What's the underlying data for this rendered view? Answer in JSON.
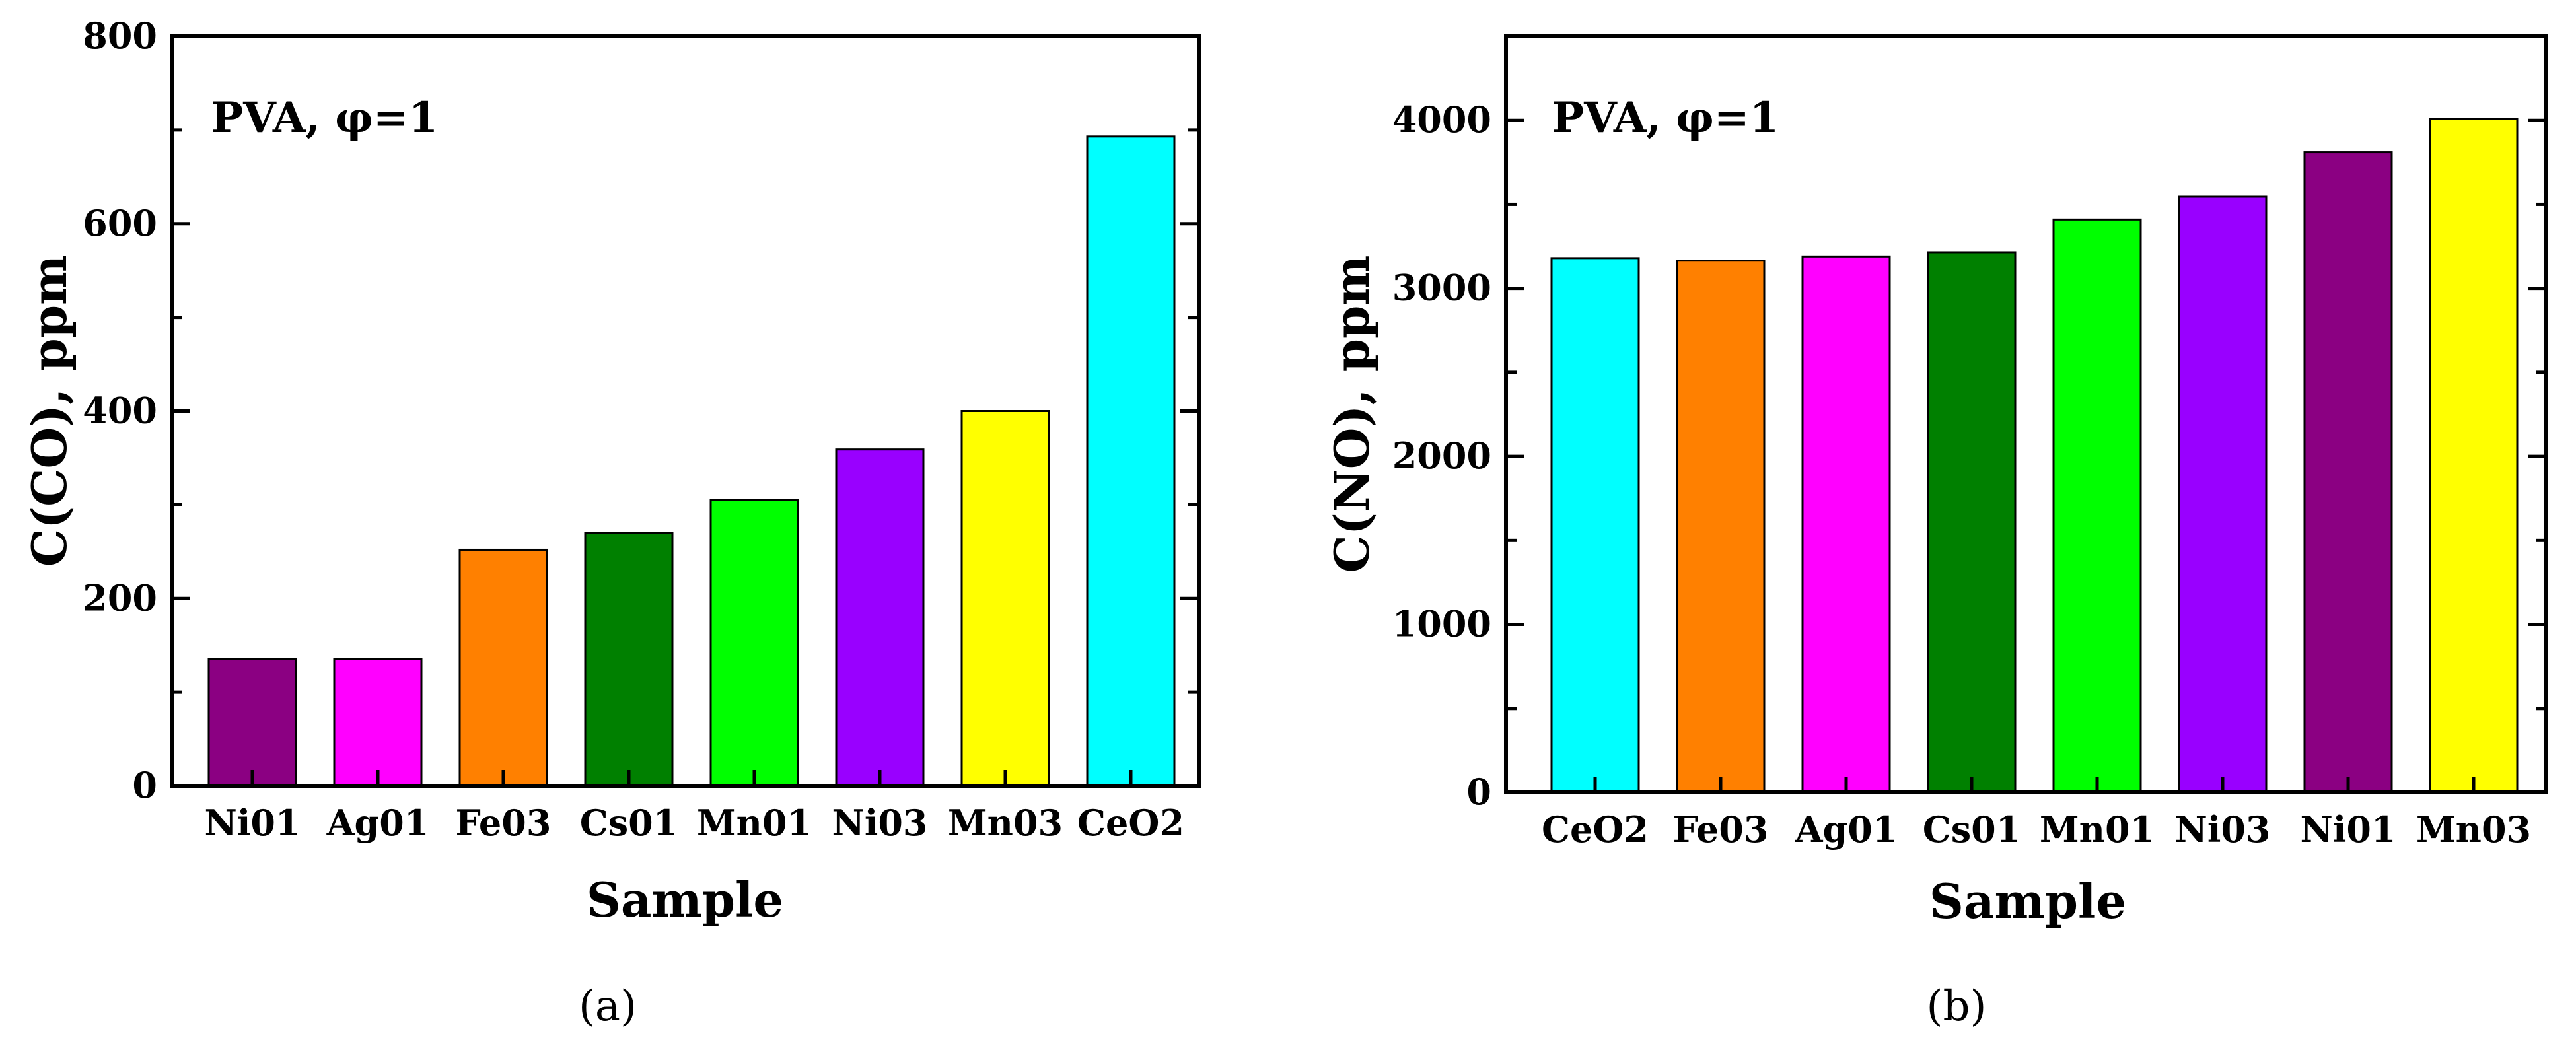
{
  "chart_data": [
    {
      "type": "bar",
      "panel_label": "(a)",
      "annotation": "PVA, φ=1",
      "xlabel": "Sample",
      "ylabel": "C(CO), ppm",
      "ylim": [
        0,
        800
      ],
      "yticks": [
        0,
        200,
        400,
        600,
        800
      ],
      "categories": [
        "Ni01",
        "Ag01",
        "Fe03",
        "Cs01",
        "Mn01",
        "Ni03",
        "Mn03",
        "CeO2"
      ],
      "values": [
        135,
        135,
        252,
        270,
        305,
        359,
        400,
        693
      ],
      "colors": [
        "#8b0082",
        "#ff00ff",
        "#ff8000",
        "#008000",
        "#00ff00",
        "#9900ff",
        "#ffff00",
        "#00ffff"
      ]
    },
    {
      "type": "bar",
      "panel_label": "(b)",
      "annotation": "PVA, φ=1",
      "xlabel": "Sample",
      "ylabel": "C(NO), ppm",
      "ylim": [
        0,
        4500
      ],
      "yticks": [
        0,
        1000,
        2000,
        3000,
        4000
      ],
      "categories": [
        "CeO2",
        "Fe03",
        "Ag01",
        "Cs01",
        "Mn01",
        "Ni03",
        "Ni01",
        "Mn03"
      ],
      "values": [
        3180,
        3165,
        3190,
        3215,
        3410,
        3545,
        3810,
        4010
      ],
      "colors": [
        "#00ffff",
        "#ff8000",
        "#ff00ff",
        "#008000",
        "#00ff00",
        "#9900ff",
        "#8b0082",
        "#ffff00"
      ]
    }
  ]
}
